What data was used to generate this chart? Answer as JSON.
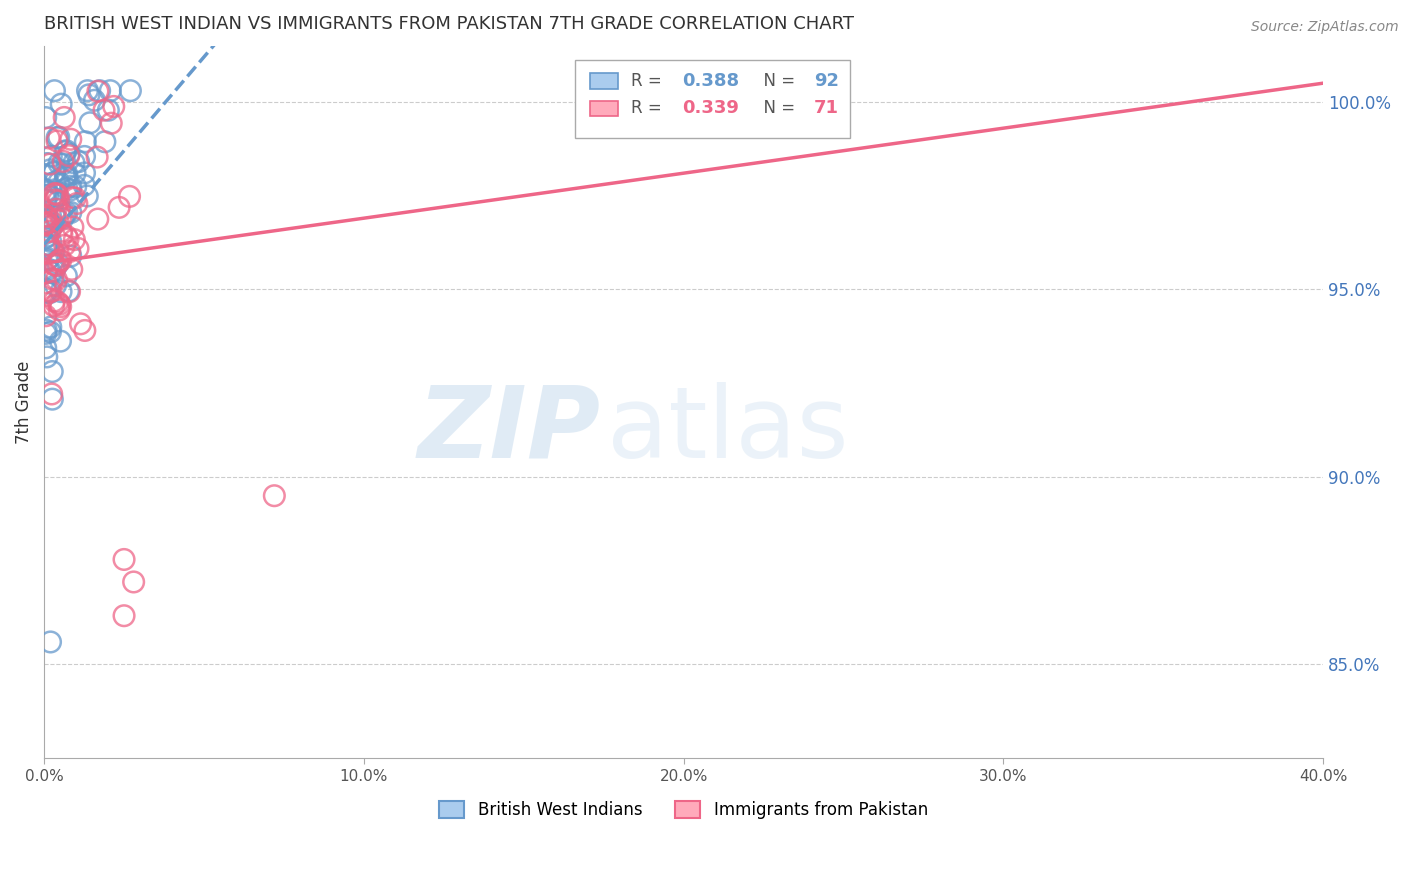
{
  "title": "BRITISH WEST INDIAN VS IMMIGRANTS FROM PAKISTAN 7TH GRADE CORRELATION CHART",
  "source": "Source: ZipAtlas.com",
  "ylabel_left": "7th Grade",
  "ylabel_right_ticks": [
    "100.0%",
    "95.0%",
    "90.0%",
    "85.0%"
  ],
  "ylabel_right_vals": [
    1.0,
    0.95,
    0.9,
    0.85
  ],
  "xmin": 0.0,
  "xmax": 0.4,
  "ymin": 0.825,
  "ymax": 1.015,
  "xtick_vals": [
    0.0,
    0.1,
    0.2,
    0.3,
    0.4
  ],
  "xtick_labels": [
    "0.0%",
    "10.0%",
    "20.0%",
    "30.0%",
    "40.0%"
  ],
  "blue_R": 0.388,
  "blue_N": 92,
  "pink_R": 0.339,
  "pink_N": 71,
  "blue_color": "#6699CC",
  "pink_color": "#EE6688",
  "blue_label": "British West Indians",
  "pink_label": "Immigrants from Pakistan",
  "grid_color": "#CCCCCC",
  "axis_color": "#AAAAAA",
  "right_axis_color": "#4477BB",
  "title_color": "#333333",
  "title_fontsize": 13,
  "source_fontsize": 10,
  "watermark_zip_color": "#C8DCEE",
  "watermark_atlas_color": "#C8DCEE"
}
